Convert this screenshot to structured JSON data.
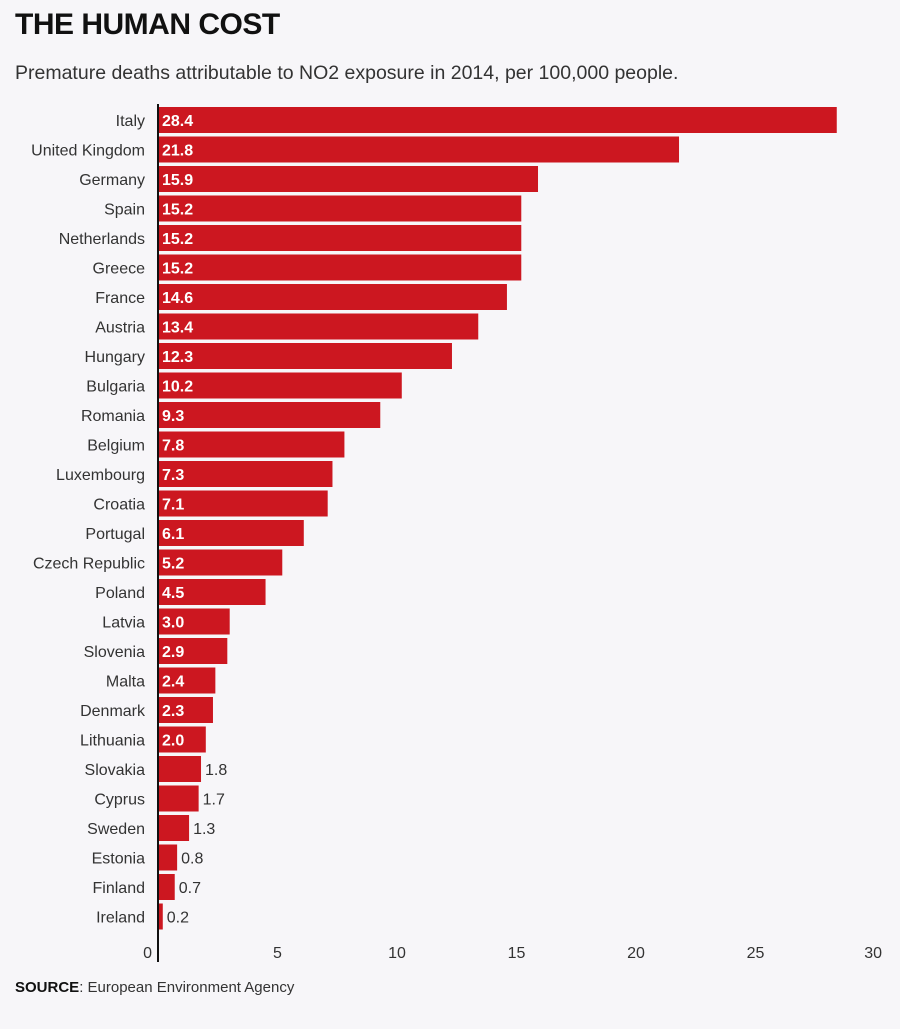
{
  "chart_data": {
    "type": "bar",
    "orientation": "horizontal",
    "title": "THE HUMAN COST",
    "subtitle": "Premature deaths attributable to NO2 exposure in 2014, per 100,000 people.",
    "categories": [
      "Italy",
      "United Kingdom",
      "Germany",
      "Spain",
      "Netherlands",
      "Greece",
      "France",
      "Austria",
      "Hungary",
      "Bulgaria",
      "Romania",
      "Belgium",
      "Luxembourg",
      "Croatia",
      "Portugal",
      "Czech Republic",
      "Poland",
      "Latvia",
      "Slovenia",
      "Malta",
      "Denmark",
      "Lithuania",
      "Slovakia",
      "Cyprus",
      "Sweden",
      "Estonia",
      "Finland",
      "Ireland"
    ],
    "values": [
      28.4,
      21.8,
      15.9,
      15.2,
      15.2,
      15.2,
      14.6,
      13.4,
      12.3,
      10.2,
      9.3,
      7.8,
      7.3,
      7.1,
      6.1,
      5.2,
      4.5,
      3.0,
      2.9,
      2.4,
      2.3,
      2.0,
      1.8,
      1.7,
      1.3,
      0.8,
      0.7,
      0.2
    ],
    "value_labels": [
      "28.4",
      "21.8",
      "15.9",
      "15.2",
      "15.2",
      "15.2",
      "14.6",
      "13.4",
      "12.3",
      "10.2",
      "9.3",
      "7.8",
      "7.3",
      "7.1",
      "6.1",
      "5.2",
      "4.5",
      "3.0",
      "2.9",
      "2.4",
      "2.3",
      "2.0",
      "1.8",
      "1.7",
      "1.3",
      "0.8",
      "0.7",
      "0.2"
    ],
    "xlim": [
      0,
      30
    ],
    "xticks": [
      "0",
      "5",
      "10",
      "15",
      "20",
      "25",
      "30"
    ],
    "xlabel": "",
    "ylabel": "",
    "grid": false,
    "bar_color": "#cc1720"
  },
  "source": {
    "label": "SOURCE",
    "text": ": European Environment Agency"
  }
}
